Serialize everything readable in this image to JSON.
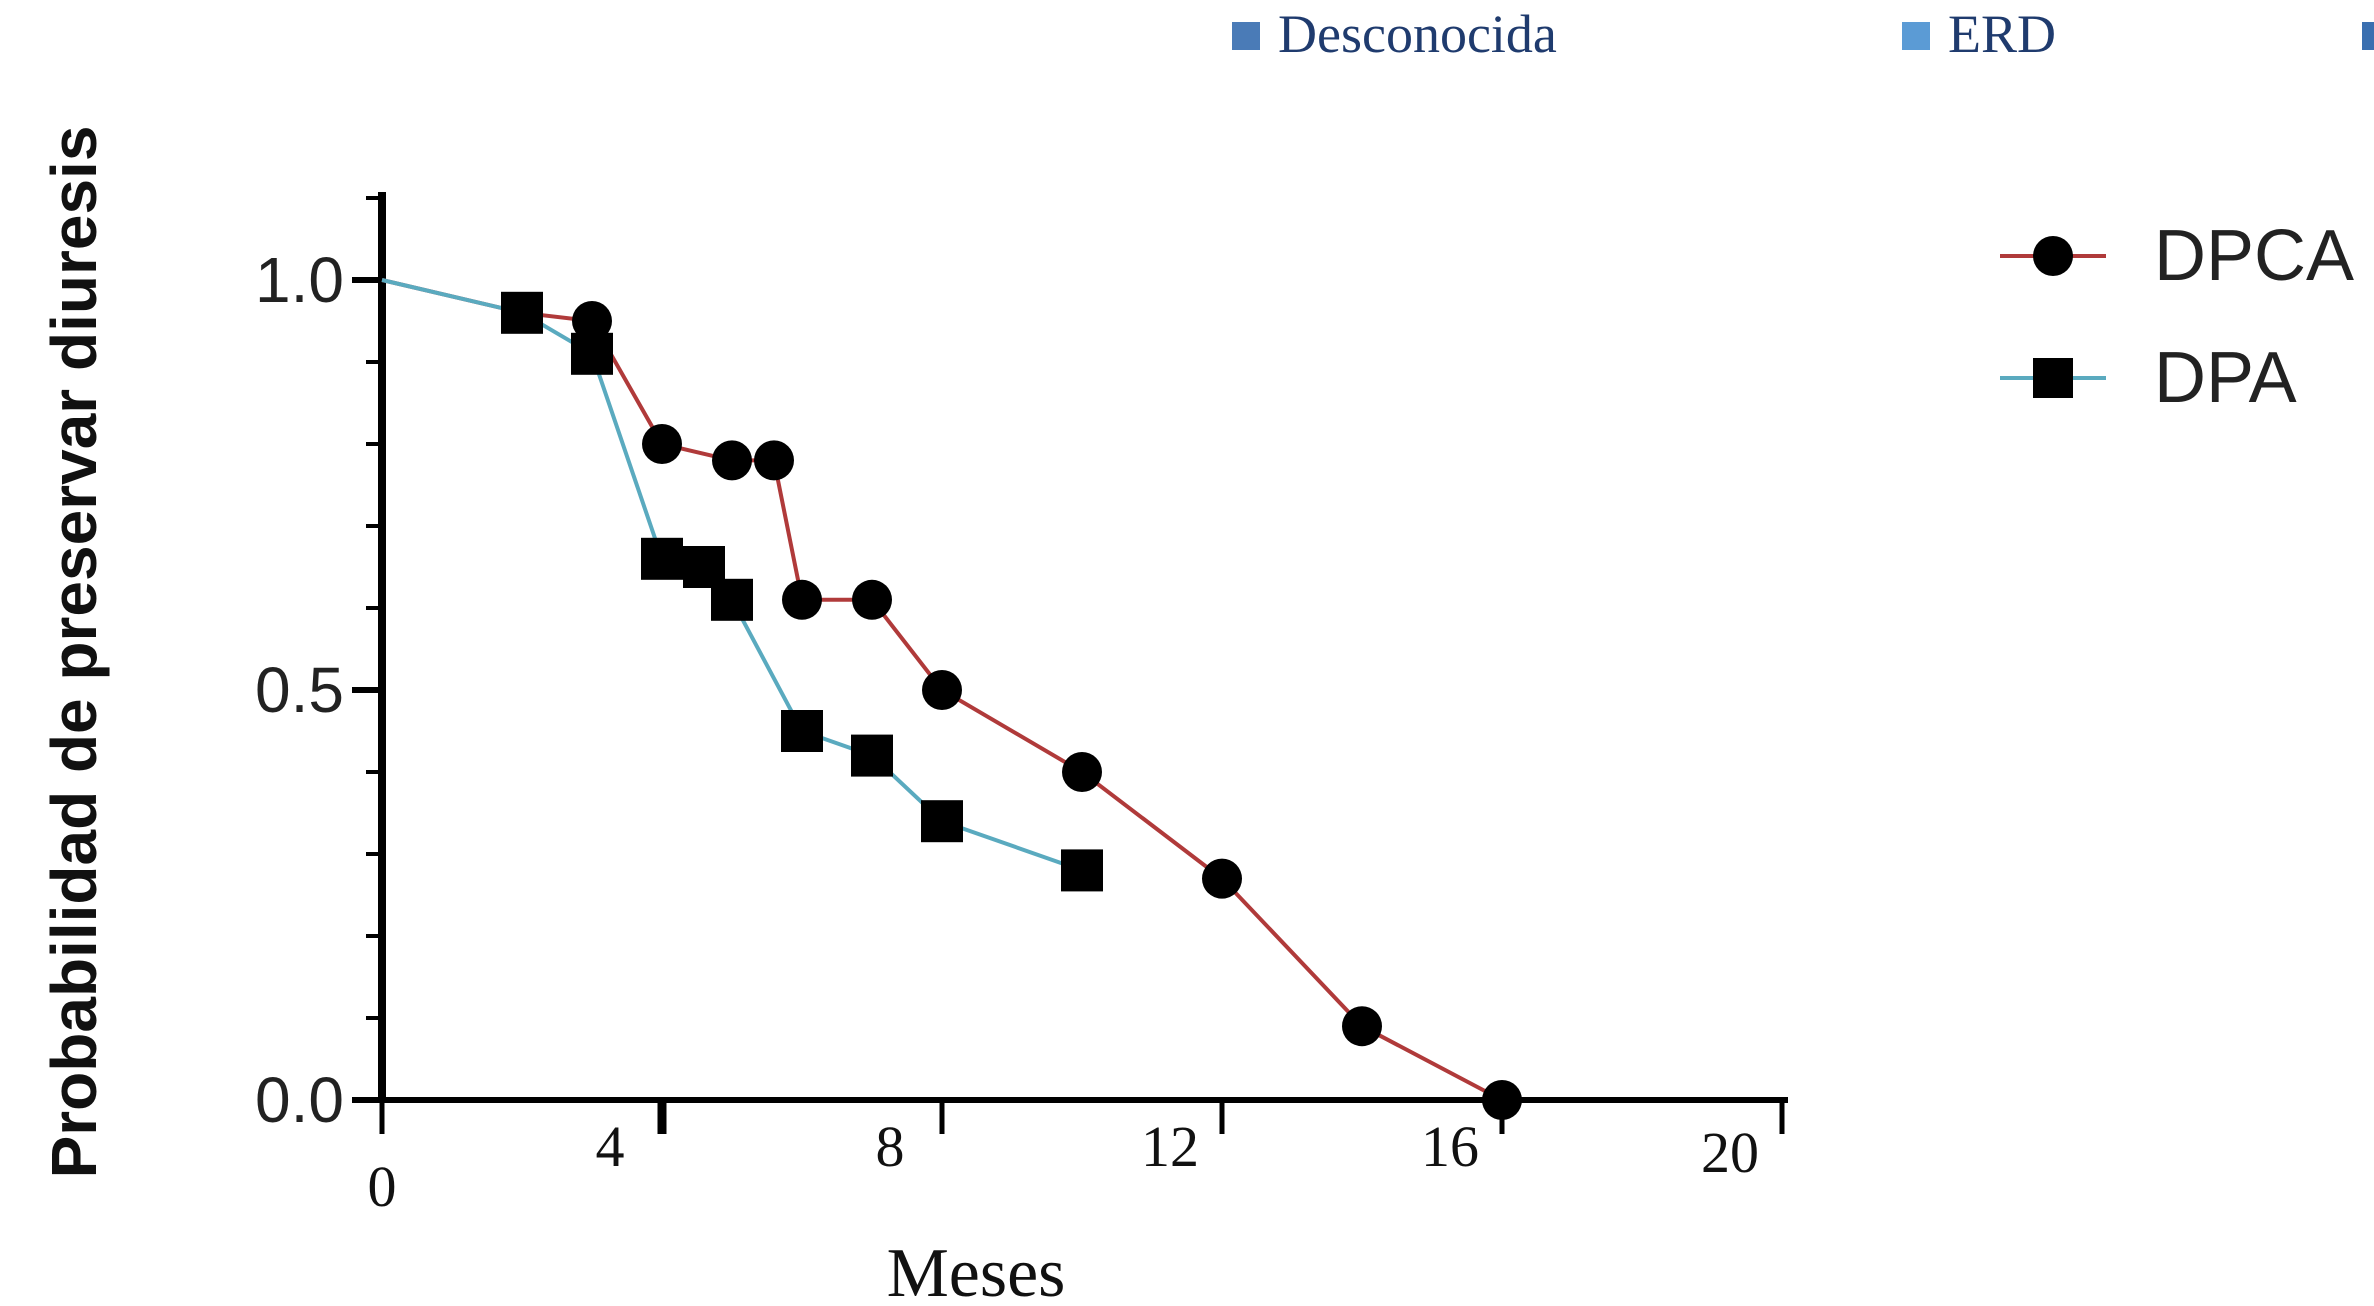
{
  "top_legend": [
    {
      "label": "Desconocida",
      "color": "#4a7bb7"
    },
    {
      "label": "ERD",
      "color": "#5b9bd5"
    }
  ],
  "chart_data": {
    "type": "line",
    "title": "",
    "ylabel": "Probabilidad de preservar diuresis",
    "xlabel": "Meses",
    "xlim": [
      0,
      20
    ],
    "ylim": [
      0,
      1.1
    ],
    "x_ticks": [
      "0",
      "4",
      "8",
      "12",
      "16",
      "20"
    ],
    "y_ticks": [
      "0.0",
      "0.5",
      "1.0"
    ],
    "legend_position": "top-right",
    "series": [
      {
        "name": "DPCA",
        "marker": "circle",
        "color": "#b03a3a",
        "x": [
          0,
          2,
          3,
          4,
          5,
          5.6,
          6,
          7,
          8,
          10,
          12,
          14,
          16
        ],
        "y": [
          1.0,
          0.96,
          0.95,
          0.8,
          0.78,
          0.78,
          0.61,
          0.61,
          0.5,
          0.4,
          0.27,
          0.09,
          0.0
        ]
      },
      {
        "name": "DPA",
        "marker": "square",
        "color": "#5aaabf",
        "x": [
          0,
          2,
          3,
          4,
          4.6,
          5,
          6,
          7,
          8,
          10
        ],
        "y": [
          1.0,
          0.96,
          0.91,
          0.66,
          0.65,
          0.61,
          0.45,
          0.42,
          0.34,
          0.28
        ]
      }
    ]
  }
}
